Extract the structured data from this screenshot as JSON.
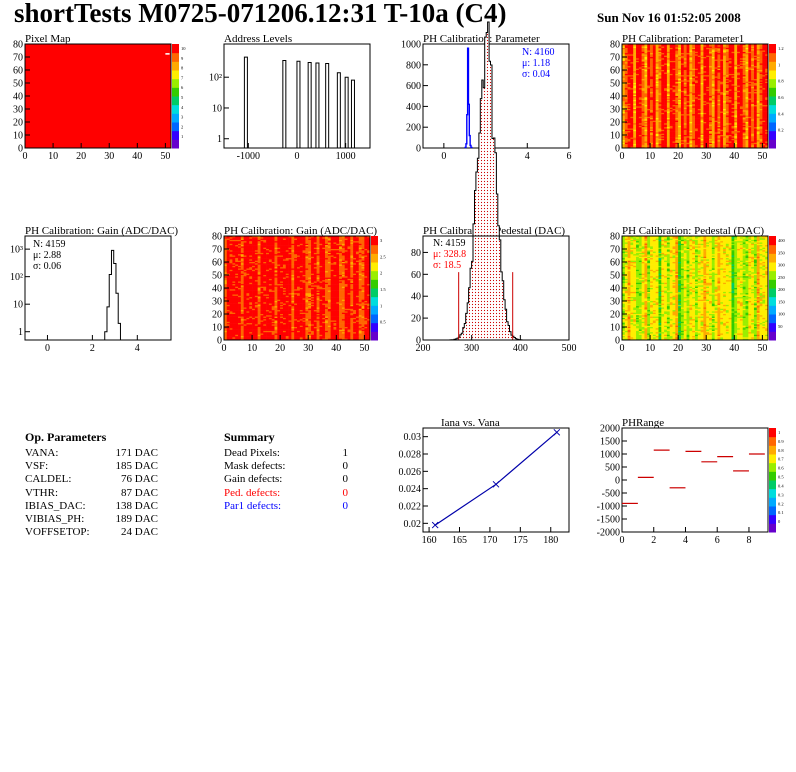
{
  "title": "shortTests M0725-071206.12:31 T-10a (C4)",
  "date": "Sun Nov 16 01:52:05 2008",
  "colors": {
    "blue": "#0000ff",
    "red": "#ff0000",
    "darkblue": "#0000aa"
  },
  "op_parameters": {
    "title": "Op. Parameters",
    "rows": [
      {
        "name": "VANA:",
        "value": "171 DAC"
      },
      {
        "name": "VSF:",
        "value": "185 DAC"
      },
      {
        "name": "CALDEL:",
        "value": "76 DAC"
      },
      {
        "name": "VTHR:",
        "value": "87 DAC"
      },
      {
        "name": "IBIAS_DAC:",
        "value": "138 DAC"
      },
      {
        "name": "VIBIAS_PH:",
        "value": "189 DAC"
      },
      {
        "name": "VOFFSETOP:",
        "value": "24 DAC"
      }
    ]
  },
  "summary": {
    "title": "Summary",
    "rows": [
      {
        "name": "Dead Pixels:",
        "value": "1",
        "color": "#000000"
      },
      {
        "name": "Mask defects:",
        "value": "0",
        "color": "#000000"
      },
      {
        "name": "Gain defects:",
        "value": "0",
        "color": "#000000"
      },
      {
        "name": "Ped. defects:",
        "value": "0",
        "color": "#ff0000"
      },
      {
        "name": "Par1 defects:",
        "value": "0",
        "color": "#0000ff"
      }
    ]
  },
  "chart_data": [
    {
      "id": "pixel-map",
      "type": "heatmap",
      "title": "Pixel Map",
      "x_ticks": [
        "0",
        "10",
        "20",
        "30",
        "40",
        "50"
      ],
      "y_ticks": [
        "0",
        "10",
        "20",
        "30",
        "40",
        "50",
        "60",
        "70",
        "80"
      ],
      "xlim": [
        0,
        52
      ],
      "ylim": [
        0,
        80
      ],
      "fill": "uniform",
      "z_ticks": [
        "10",
        "9",
        "8",
        "7",
        "6",
        "5",
        "4",
        "3",
        "2",
        "1"
      ]
    },
    {
      "id": "address-levels",
      "type": "bar",
      "title": "Address Levels",
      "x_ticks": [
        "-1000",
        "0",
        "1000"
      ],
      "y_ticks": [
        "1",
        "10",
        "10²"
      ],
      "xlim": [
        -1500,
        1500
      ],
      "ylim": [
        0.5,
        1200
      ],
      "log_y": true,
      "peaks": [
        {
          "x": -1050,
          "y": 450
        },
        {
          "x": -260,
          "y": 350
        },
        {
          "x": 30,
          "y": 330
        },
        {
          "x": 260,
          "y": 300
        },
        {
          "x": 420,
          "y": 290
        },
        {
          "x": 620,
          "y": 280
        },
        {
          "x": 860,
          "y": 140
        },
        {
          "x": 1020,
          "y": 100
        },
        {
          "x": 1150,
          "y": 80
        }
      ]
    },
    {
      "id": "ph-param0",
      "type": "bar",
      "title": "PH Calibration: Parameter",
      "x_ticks": [
        "0",
        "2",
        "4",
        "6"
      ],
      "y_ticks": [
        "0",
        "200",
        "400",
        "600",
        "800",
        "1000"
      ],
      "xlim": [
        -1,
        6
      ],
      "ylim": [
        0,
        1000
      ],
      "stats": [
        {
          "label": "N: 4160",
          "color": "#0000ff"
        },
        {
          "label": "μ: 1.18",
          "color": "#0000ff"
        },
        {
          "label": "σ: 0.04",
          "color": "#0000ff"
        }
      ],
      "bins": [
        {
          "x": 1.04,
          "y": 5
        },
        {
          "x": 1.08,
          "y": 40
        },
        {
          "x": 1.12,
          "y": 320
        },
        {
          "x": 1.16,
          "y": 960
        },
        {
          "x": 1.2,
          "y": 420
        },
        {
          "x": 1.24,
          "y": 120
        },
        {
          "x": 1.28,
          "y": 25
        },
        {
          "x": 1.32,
          "y": 5
        }
      ]
    },
    {
      "id": "ph-param1",
      "type": "heatmap",
      "title": "PH Calibration: Parameter1",
      "x_ticks": [
        "0",
        "10",
        "20",
        "30",
        "40",
        "50"
      ],
      "y_ticks": [
        "0",
        "10",
        "20",
        "30",
        "40",
        "50",
        "60",
        "70",
        "80"
      ],
      "xlim": [
        0,
        52
      ],
      "ylim": [
        0,
        80
      ],
      "fill": "columns-param1",
      "z_ticks": [
        "1.2",
        "1",
        "0.8",
        "0.6",
        "0.4",
        "0.2"
      ]
    },
    {
      "id": "gain-hist",
      "type": "bar",
      "title": "PH Calibration: Gain (ADC/DAC)",
      "x_ticks": [
        "0",
        "2",
        "4"
      ],
      "y_ticks": [
        "1",
        "10",
        "10²",
        "10³"
      ],
      "xlim": [
        -1,
        5.5
      ],
      "ylim": [
        0.5,
        3000
      ],
      "log_y": true,
      "stats": [
        {
          "label": "N: 4159",
          "color": "#000000"
        },
        {
          "label": "μ: 2.88",
          "color": "#000000"
        },
        {
          "label": "σ: 0.06",
          "color": "#000000"
        }
      ],
      "bins": [
        {
          "x": 2.6,
          "y": 1
        },
        {
          "x": 2.7,
          "y": 8
        },
        {
          "x": 2.8,
          "y": 120
        },
        {
          "x": 2.9,
          "y": 900
        },
        {
          "x": 3.0,
          "y": 300
        },
        {
          "x": 3.1,
          "y": 25
        },
        {
          "x": 3.2,
          "y": 2
        }
      ]
    },
    {
      "id": "gain-map",
      "type": "heatmap",
      "title": "PH Calibration: Gain (ADC/DAC)",
      "x_ticks": [
        "0",
        "10",
        "20",
        "30",
        "40",
        "50"
      ],
      "y_ticks": [
        "0",
        "10",
        "20",
        "30",
        "40",
        "50",
        "60",
        "70",
        "80"
      ],
      "xlim": [
        0,
        52
      ],
      "ylim": [
        0,
        80
      ],
      "fill": "columns-gain",
      "z_ticks": [
        "3",
        "2.5",
        "2",
        "1.5",
        "1",
        "0.5"
      ]
    },
    {
      "id": "pedestal-hist",
      "type": "bar",
      "title": "PH Calibration: Pedestal (DAC)",
      "x_ticks": [
        "200",
        "300",
        "400",
        "500"
      ],
      "y_ticks": [
        "0",
        "20",
        "40",
        "60",
        "80"
      ],
      "xlim": [
        200,
        500
      ],
      "ylim": [
        0,
        95
      ],
      "stats": [
        {
          "label": "N: 4159",
          "color": "#000000"
        },
        {
          "label": "μ: 328.8",
          "color": "#ff0000"
        },
        {
          "label": "σ: 18.5",
          "color": "#ff0000"
        }
      ],
      "cut_lines": [
        273.3,
        384.3
      ],
      "mean": 328.8,
      "sigma": 18.5,
      "n": 4159,
      "bin_width": 3
    },
    {
      "id": "pedestal-map",
      "type": "heatmap",
      "title": "PH Calibration: Pedestal (DAC)",
      "x_ticks": [
        "0",
        "10",
        "20",
        "30",
        "40",
        "50"
      ],
      "y_ticks": [
        "0",
        "10",
        "20",
        "30",
        "40",
        "50",
        "60",
        "70",
        "80"
      ],
      "xlim": [
        0,
        52
      ],
      "ylim": [
        0,
        80
      ],
      "fill": "columns-pedestal",
      "z_ticks": [
        "400",
        "350",
        "300",
        "250",
        "200",
        "150",
        "100",
        "50"
      ]
    },
    {
      "id": "iana-vana",
      "type": "line",
      "title": "Iana vs. Vana",
      "x": [
        161,
        171,
        181
      ],
      "y": [
        0.0198,
        0.0245,
        0.0305
      ],
      "x_ticks": [
        "160",
        "165",
        "170",
        "175",
        "180"
      ],
      "y_ticks": [
        "0.02",
        "0.022",
        "0.024",
        "0.026",
        "0.028",
        "0.03"
      ],
      "xlim": [
        159,
        183
      ],
      "ylim": [
        0.019,
        0.031
      ]
    },
    {
      "id": "ph-range",
      "type": "scatter",
      "title": "PHRange",
      "x": [
        0.5,
        1.5,
        2.5,
        3.5,
        4.5,
        5.5,
        6.5,
        7.5,
        8.5
      ],
      "y": [
        -900,
        100,
        1150,
        -300,
        1100,
        700,
        900,
        350,
        1000
      ],
      "x_ticks": [
        "0",
        "2",
        "4",
        "6",
        "8"
      ],
      "y_ticks": [
        "-2000",
        "-1500",
        "-1000",
        "-500",
        "0",
        "500",
        "1000",
        "1500",
        "2000"
      ],
      "xlim": [
        0,
        9.2
      ],
      "ylim": [
        -2000,
        2000
      ],
      "z_ticks": [
        "1",
        "0.9",
        "0.8",
        "0.7",
        "0.6",
        "0.5",
        "0.4",
        "0.3",
        "0.2",
        "0.1",
        "0"
      ]
    }
  ]
}
